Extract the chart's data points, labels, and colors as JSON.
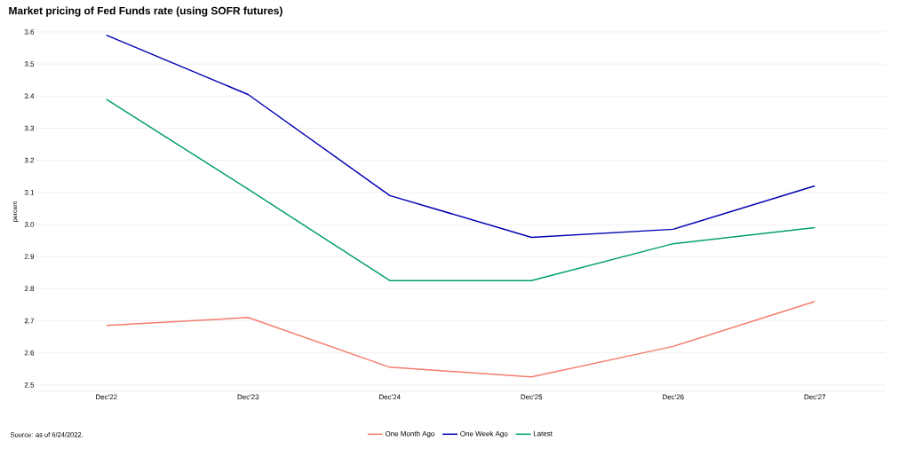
{
  "chart_data": {
    "type": "line",
    "title": "Market pricing of Fed Funds rate (using SOFR futures)",
    "ylabel": "percent",
    "categories": [
      "Dec'22",
      "Dec'23",
      "Dec'24",
      "Dec'25",
      "Dec'26",
      "Dec'27"
    ],
    "series": [
      {
        "name": "One Month Ago",
        "color": "#f47c6c",
        "values": [
          2.685,
          2.71,
          2.555,
          2.525,
          2.62,
          2.76
        ]
      },
      {
        "name": "One Week Ago",
        "color": "#0000b4",
        "values": [
          3.59,
          3.405,
          3.09,
          2.96,
          2.985,
          3.12
        ]
      },
      {
        "name": "Latest",
        "color": "#00a060",
        "values": [
          3.39,
          3.11,
          2.825,
          2.825,
          2.94,
          2.99
        ]
      }
    ],
    "ylim": [
      2.48,
      3.6
    ],
    "yticks": [
      {
        "value": 2.5,
        "label": "2.5"
      },
      {
        "value": 2.6,
        "label": "2.6"
      },
      {
        "value": 2.7,
        "label": "2.7"
      },
      {
        "value": 2.8,
        "label": "2.8"
      },
      {
        "value": 2.9,
        "label": "2.9"
      },
      {
        "value": 3.0,
        "label": "3.0"
      },
      {
        "value": 3.1,
        "label": "3.1"
      },
      {
        "value": 3.2,
        "label": "3.2"
      },
      {
        "value": 3.3,
        "label": "3.3"
      },
      {
        "value": 3.4,
        "label": "3.4"
      },
      {
        "value": 3.5,
        "label": "3.5"
      },
      {
        "value": 3.6,
        "label": "3.6"
      }
    ],
    "grid": "y",
    "legend": "bottom",
    "marker": "none",
    "line_style": "solid",
    "annotations": [
      "Source: as of 6/24/2022."
    ]
  }
}
